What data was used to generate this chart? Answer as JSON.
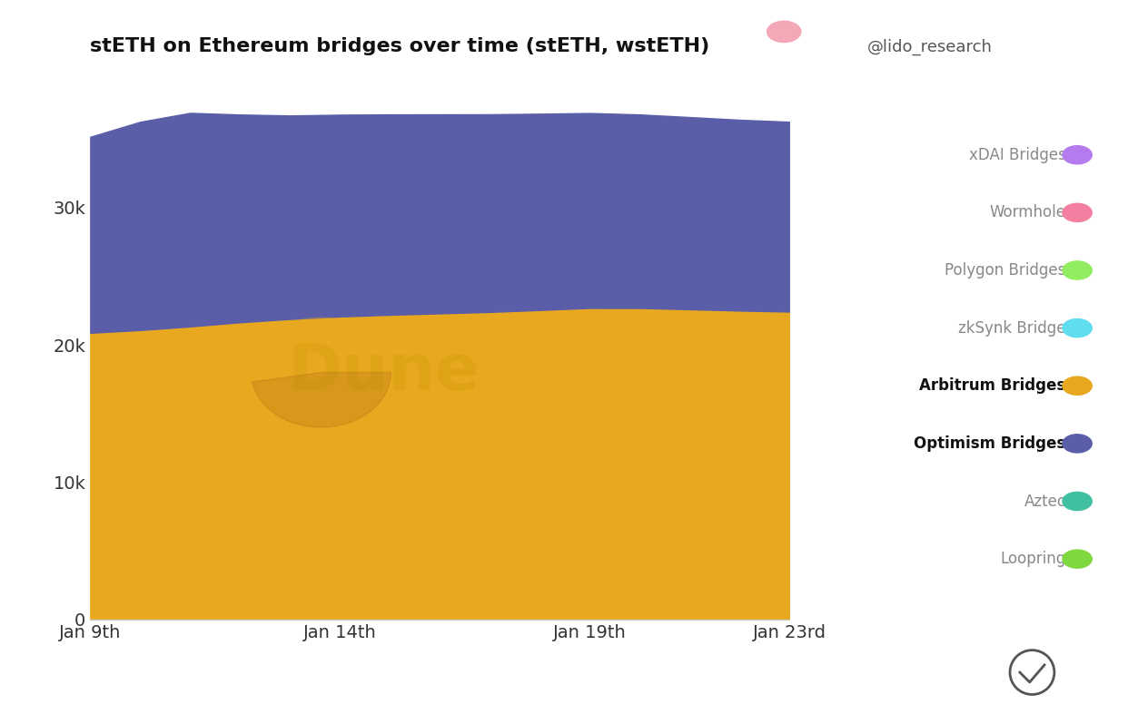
{
  "title": "stETH on Ethereum bridges over time (stETH, wstETH)",
  "watermark": "@lido_research",
  "background_color": "#ffffff",
  "border_color": "#f4a0a0",
  "x_labels": [
    "Jan 9th",
    "Jan 14th",
    "Jan 19th",
    "Jan 23rd"
  ],
  "x_positions": [
    0,
    5,
    10,
    14
  ],
  "x_raw": [
    0,
    1,
    2,
    3,
    4,
    5,
    6,
    7,
    8,
    9,
    10,
    11,
    12,
    13,
    14
  ],
  "arbitrum_values": [
    20800,
    21100,
    21300,
    21700,
    21900,
    22100,
    22200,
    22300,
    22400,
    22500,
    22800,
    22700,
    22600,
    22500,
    22400
  ],
  "optimism_values": [
    13800,
    15500,
    16000,
    14900,
    14800,
    14700,
    14600,
    14500,
    14400,
    14300,
    14200,
    14100,
    14000,
    13900,
    13800
  ],
  "arbitrum_color": "#E8A820",
  "optimism_color": "#5A5EA8",
  "legend_items": [
    {
      "label": "xDAI Bridges",
      "color": "#B57BEE",
      "bold": false
    },
    {
      "label": "Wormhole",
      "color": "#F47FA0",
      "bold": false
    },
    {
      "label": "Polygon Bridges",
      "color": "#90EE60",
      "bold": false
    },
    {
      "label": "zkSynk Bridge",
      "color": "#60DDEF",
      "bold": false
    },
    {
      "label": "Arbitrum Bridges",
      "color": "#E8A820",
      "bold": true
    },
    {
      "label": "Optimism Bridges",
      "color": "#5A5EA8",
      "bold": true
    },
    {
      "label": "Aztec",
      "color": "#40C0A0",
      "bold": false
    },
    {
      "label": "Loopring",
      "color": "#80D840",
      "bold": false
    }
  ],
  "yticks": [
    0,
    10000,
    20000,
    30000
  ],
  "ytick_labels": [
    "0",
    "10k",
    "20k",
    "30k"
  ],
  "ylim": [
    0,
    40000
  ],
  "dune_watermark_color": "#C8960080"
}
